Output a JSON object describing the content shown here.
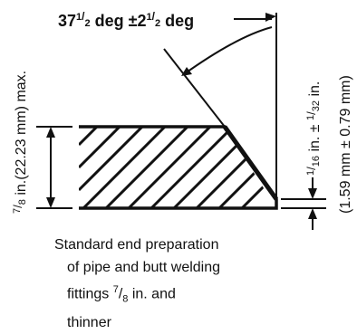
{
  "diagram": {
    "angle_label": {
      "main": "37",
      "frac1_num": "1",
      "frac1_den": "2",
      "mid": " deg ±2",
      "frac2_num": "1",
      "frac2_den": "2",
      "end": " deg"
    },
    "thickness_label": {
      "frac_num": "7",
      "frac_den": "8",
      "rest": " in.(22.23 mm) max."
    },
    "land_label": {
      "frac1_num": "1",
      "frac1_den": "16",
      "mid": " in. ± ",
      "frac2_num": "1",
      "frac2_den": "32",
      "end": " in."
    },
    "land_metric": "(1.59 mm ± 0.79 mm)",
    "caption": {
      "line1": "Standard end preparation",
      "line2": "of pipe and butt welding",
      "line3_pre": "fittings ",
      "line3_frac_num": "7",
      "line3_frac_den": "8",
      "line3_post": " in. and",
      "line4": "thinner"
    }
  }
}
